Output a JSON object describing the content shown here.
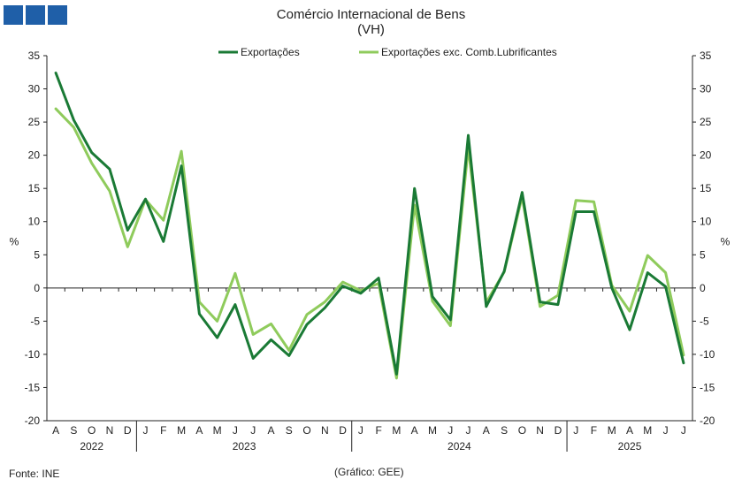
{
  "header": {
    "title": "Comércio Internacional de Bens",
    "subtitle": "(VH)"
  },
  "footer": {
    "source": "Fonte: INE",
    "credit": "(Gráfico: GEE)"
  },
  "chart_data": {
    "type": "line",
    "title": "Comércio Internacional de Bens",
    "subtitle": "(VH)",
    "ylabel": "%",
    "ylabel_right": "%",
    "ylim": [
      -20,
      35
    ],
    "yticks": [
      -20,
      -15,
      -10,
      -5,
      0,
      5,
      10,
      15,
      20,
      25,
      30,
      35
    ],
    "legend_position": "top-center",
    "months": [
      "A",
      "S",
      "O",
      "N",
      "D",
      "J",
      "F",
      "M",
      "A",
      "M",
      "J",
      "J",
      "A",
      "S",
      "O",
      "N",
      "D",
      "J",
      "F",
      "M",
      "A",
      "M",
      "J",
      "J",
      "A",
      "S",
      "O",
      "N",
      "D",
      "J",
      "F",
      "M",
      "A",
      "M",
      "J",
      "J"
    ],
    "years": [
      {
        "label": "2022",
        "start": 0,
        "end": 4
      },
      {
        "label": "2023",
        "start": 5,
        "end": 16
      },
      {
        "label": "2024",
        "start": 17,
        "end": 28
      },
      {
        "label": "2025",
        "start": 29,
        "end": 35
      }
    ],
    "series": [
      {
        "name": "Exportações",
        "color": "#1a7a35",
        "values": [
          32.4,
          25.3,
          20.4,
          17.9,
          8.7,
          13.4,
          7.0,
          18.4,
          -3.9,
          -7.5,
          -2.5,
          -10.6,
          -7.8,
          -10.2,
          -5.5,
          -3.0,
          0.3,
          -0.8,
          1.5,
          -13.0,
          15.0,
          -1.3,
          -4.8,
          23.0,
          -2.8,
          2.5,
          14.4,
          -2.1,
          -2.5,
          11.5,
          11.5,
          0.0,
          -6.3,
          2.3,
          0.2,
          -11.3
        ]
      },
      {
        "name": "Exportações exc. Comb.Lubrificantes",
        "color": "#8fcb5c",
        "values": [
          27.0,
          24.2,
          18.8,
          14.6,
          6.2,
          13.3,
          10.2,
          20.6,
          -2.1,
          -5.0,
          2.2,
          -7.0,
          -5.4,
          -9.4,
          -4.0,
          -2.1,
          0.9,
          -0.4,
          0.7,
          -13.6,
          12.5,
          -2.0,
          -5.7,
          21.2,
          -2.2,
          2.4,
          13.8,
          -2.8,
          -1.1,
          13.2,
          13.0,
          0.4,
          -3.5,
          4.9,
          2.3,
          -10.1
        ]
      }
    ]
  }
}
